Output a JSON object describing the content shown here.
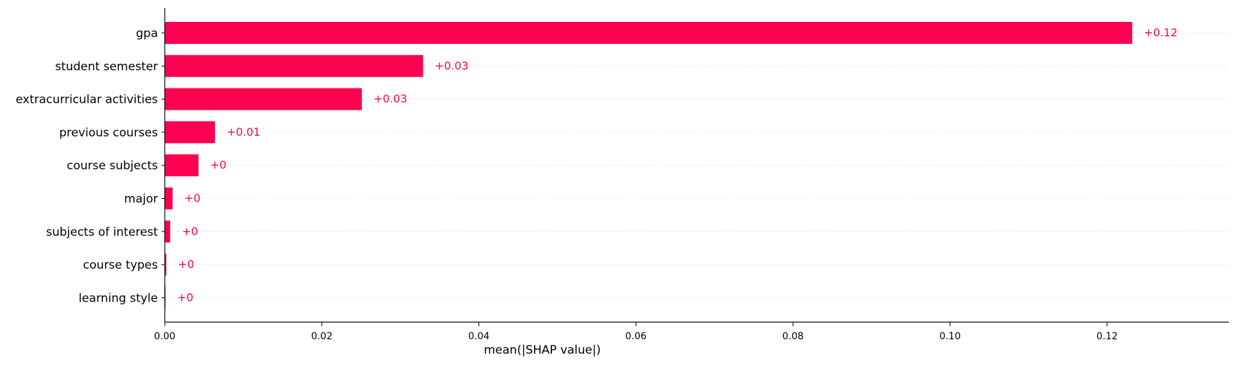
{
  "chart_data": {
    "type": "bar",
    "orientation": "horizontal",
    "categories": [
      "gpa",
      "student semester",
      "extracurricular activities",
      "previous courses",
      "course subjects",
      "major",
      "subjects of interest",
      "course types",
      "learning style"
    ],
    "values": [
      0.1232,
      0.0329,
      0.0251,
      0.0064,
      0.0043,
      0.001,
      0.0007,
      0.0002,
      0.0001
    ],
    "value_labels": [
      "+0.12",
      "+0.03",
      "+0.03",
      "+0.01",
      "+0",
      "+0",
      "+0",
      "+0",
      "+0"
    ],
    "xlabel": "mean(|SHAP value|)",
    "ylabel": "",
    "title": "",
    "xlim": [
      0,
      0.1355
    ],
    "xticks": [
      0.0,
      0.02,
      0.04,
      0.06,
      0.08,
      0.1,
      0.12
    ],
    "xtick_labels": [
      "0.00",
      "0.02",
      "0.04",
      "0.06",
      "0.08",
      "0.10",
      "0.12"
    ],
    "grid": "dotted horizontal lines per row",
    "colors": {
      "bar": "#ff0051",
      "value_text": "#ff0051",
      "grid": "#cccccc",
      "axis": "#000000"
    }
  }
}
